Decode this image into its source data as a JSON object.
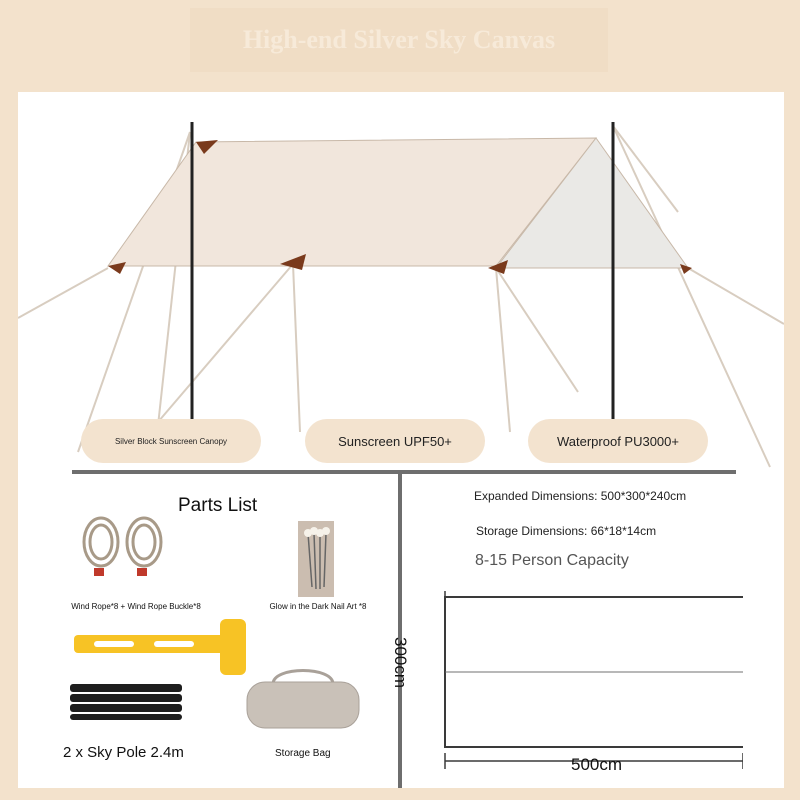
{
  "header": {
    "title": "High-end Silver Sky Canvas"
  },
  "features": [
    {
      "label": "Silver Block Sunscreen Canopy"
    },
    {
      "label": "Sunscreen UPF50+"
    },
    {
      "label": "Waterproof PU3000+"
    }
  ],
  "parts": {
    "title": "Parts List",
    "items": [
      {
        "label": "Wind Rope*8 + Wind Rope Buckle*8",
        "icon": "rope-coil-icon"
      },
      {
        "label": "Glow in the Dark Nail Art *8",
        "icon": "tent-stakes-icon"
      },
      {
        "label": "",
        "icon": "hammer-icon"
      },
      {
        "label": "2 x Sky Pole 2.4m",
        "icon": "poles-icon"
      },
      {
        "label": "Storage Bag",
        "icon": "storage-bag-icon"
      }
    ]
  },
  "dimensions": {
    "expanded": "Expanded Dimensions: 500*300*240cm",
    "storage": "Storage Dimensions: 66*18*14cm",
    "capacity": "8-15 Person Capacity",
    "width_label": "500cm",
    "depth_label": "300cm"
  },
  "colors": {
    "background": "#f3e2cc",
    "canopy": "#f1e6dc",
    "accent_brown": "#7a3a1c",
    "hammer": "#f7c325"
  }
}
